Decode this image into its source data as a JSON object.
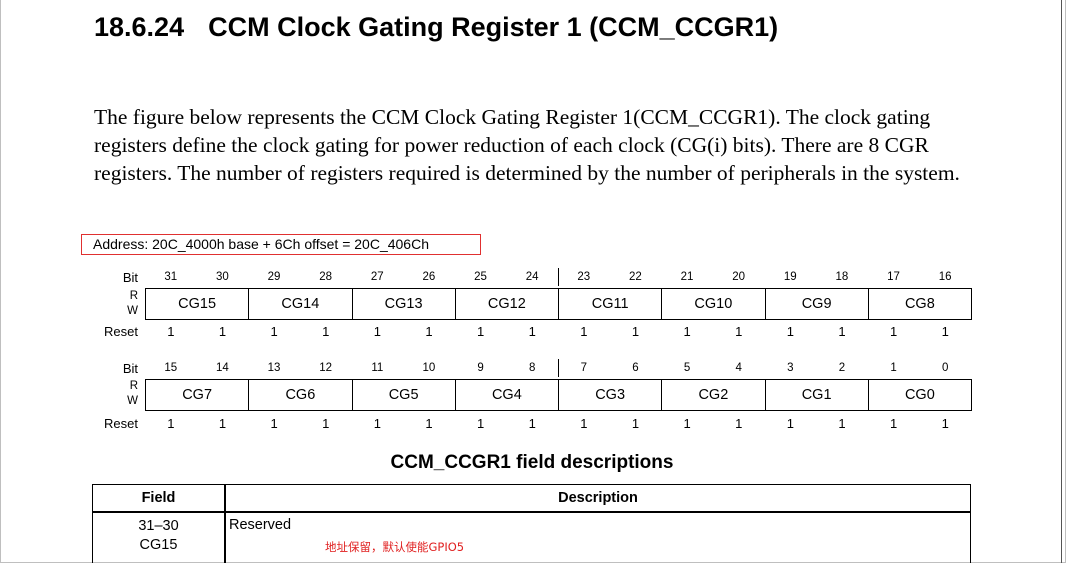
{
  "section": {
    "number": "18.6.24",
    "title": "CCM Clock Gating Register 1 (CCM_CCGR1)"
  },
  "intro": "The figure below represents the CCM Clock Gating Register 1(CCM_CCGR1). The clock gating registers define the clock gating for power reduction of each clock (CG(i) bits). There are 8 CGR registers. The number of registers required is determined by the number of peripherals in the system.",
  "address": "Address: 20C_4000h base + 6Ch offset = 20C_406Ch",
  "register": {
    "labels": {
      "bit": "Bit",
      "r": "R",
      "w": "W",
      "reset": "Reset"
    },
    "upper": {
      "bits": [
        "31",
        "30",
        "29",
        "28",
        "27",
        "26",
        "25",
        "24",
        "23",
        "22",
        "21",
        "20",
        "19",
        "18",
        "17",
        "16"
      ],
      "fields": [
        "CG15",
        "CG14",
        "CG13",
        "CG12",
        "CG11",
        "CG10",
        "CG9",
        "CG8"
      ],
      "reset": [
        "1",
        "1",
        "1",
        "1",
        "1",
        "1",
        "1",
        "1",
        "1",
        "1",
        "1",
        "1",
        "1",
        "1",
        "1",
        "1"
      ]
    },
    "lower": {
      "bits": [
        "15",
        "14",
        "13",
        "12",
        "11",
        "10",
        "9",
        "8",
        "7",
        "6",
        "5",
        "4",
        "3",
        "2",
        "1",
        "0"
      ],
      "fields": [
        "CG7",
        "CG6",
        "CG5",
        "CG4",
        "CG3",
        "CG2",
        "CG1",
        "CG0"
      ],
      "reset": [
        "1",
        "1",
        "1",
        "1",
        "1",
        "1",
        "1",
        "1",
        "1",
        "1",
        "1",
        "1",
        "1",
        "1",
        "1",
        "1"
      ]
    }
  },
  "table": {
    "title": "CCM_CCGR1 field descriptions",
    "headers": {
      "field": "Field",
      "description": "Description"
    },
    "rows": [
      {
        "bits": "31–30",
        "name": "CG15",
        "description": "Reserved"
      }
    ]
  },
  "annotation": "地址保留，默认使能GPIO5"
}
